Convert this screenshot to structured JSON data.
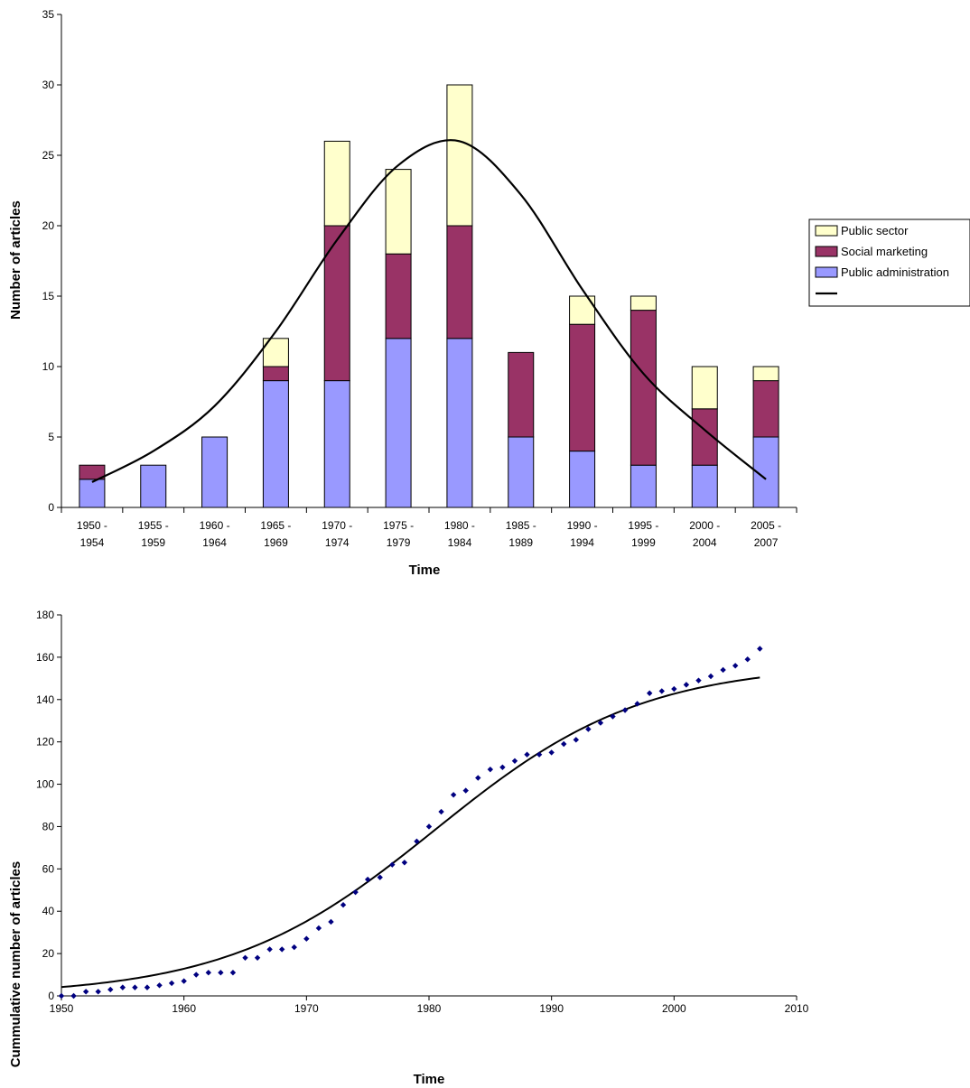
{
  "chart_data": [
    {
      "type": "bar",
      "stacked": true,
      "title": "",
      "xlabel": "Time",
      "ylabel": "Number of articles",
      "ylim": [
        0,
        35
      ],
      "yticks": [
        0,
        5,
        10,
        15,
        20,
        25,
        30,
        35
      ],
      "categories": [
        [
          "1950 -",
          "1954"
        ],
        [
          "1955 -",
          "1959"
        ],
        [
          "1960 -",
          "1964"
        ],
        [
          "1965 -",
          "1969"
        ],
        [
          "1970 -",
          "1974"
        ],
        [
          "1975 -",
          "1979"
        ],
        [
          "1980 -",
          "1984"
        ],
        [
          "1985 -",
          "1989"
        ],
        [
          "1990 -",
          "1994"
        ],
        [
          "1995 -",
          "1999"
        ],
        [
          "2000 -",
          "2004"
        ],
        [
          "2005 -",
          "2007"
        ]
      ],
      "series": [
        {
          "name": "Public administration",
          "color": "#9999ff",
          "values": [
            2,
            3,
            5,
            9,
            9,
            12,
            12,
            5,
            4,
            3,
            3,
            5
          ]
        },
        {
          "name": "Social marketing",
          "color": "#993366",
          "values": [
            1,
            0,
            0,
            1,
            11,
            6,
            8,
            6,
            9,
            11,
            4,
            4
          ]
        },
        {
          "name": "Public sector",
          "color": "#ffffcc",
          "values": [
            0,
            0,
            0,
            2,
            6,
            6,
            10,
            0,
            2,
            1,
            3,
            1
          ]
        }
      ],
      "trend_line": {
        "name": "",
        "color": "#000000",
        "values": [
          1.8,
          4.0,
          7.2,
          12.5,
          19.0,
          24.3,
          26.0,
          22.2,
          15.5,
          9.5,
          5.5,
          2.0
        ]
      },
      "legend": {
        "position": "right",
        "entries": [
          {
            "label": "Public sector",
            "color": "#ffffcc",
            "kind": "box"
          },
          {
            "label": "Social marketing",
            "color": "#993366",
            "kind": "box"
          },
          {
            "label": "Public administration",
            "color": "#9999ff",
            "kind": "box"
          },
          {
            "label": "",
            "color": "#000000",
            "kind": "line"
          }
        ]
      }
    },
    {
      "type": "scatter",
      "title": "",
      "xlabel": "Time",
      "ylabel": "Cummulative number of articles",
      "xlim": [
        1950,
        2010
      ],
      "ylim": [
        0,
        180
      ],
      "xticks": [
        1950,
        1960,
        1970,
        1980,
        1990,
        2000,
        2010
      ],
      "yticks": [
        0,
        20,
        40,
        60,
        80,
        100,
        120,
        140,
        160,
        180
      ],
      "points_color": "#000080",
      "points": [
        [
          1950,
          0
        ],
        [
          1951,
          0
        ],
        [
          1952,
          2
        ],
        [
          1953,
          2
        ],
        [
          1954,
          3
        ],
        [
          1955,
          4
        ],
        [
          1956,
          4
        ],
        [
          1957,
          4
        ],
        [
          1958,
          5
        ],
        [
          1959,
          6
        ],
        [
          1960,
          7
        ],
        [
          1961,
          10
        ],
        [
          1962,
          11
        ],
        [
          1963,
          11
        ],
        [
          1964,
          11
        ],
        [
          1965,
          18
        ],
        [
          1966,
          18
        ],
        [
          1967,
          22
        ],
        [
          1968,
          22
        ],
        [
          1969,
          23
        ],
        [
          1970,
          27
        ],
        [
          1971,
          32
        ],
        [
          1972,
          35
        ],
        [
          1973,
          43
        ],
        [
          1974,
          49
        ],
        [
          1975,
          55
        ],
        [
          1976,
          56
        ],
        [
          1977,
          62
        ],
        [
          1978,
          63
        ],
        [
          1979,
          73
        ],
        [
          1980,
          80
        ],
        [
          1981,
          87
        ],
        [
          1982,
          95
        ],
        [
          1983,
          97
        ],
        [
          1984,
          103
        ],
        [
          1985,
          107
        ],
        [
          1986,
          108
        ],
        [
          1987,
          111
        ],
        [
          1988,
          114
        ],
        [
          1989,
          114
        ],
        [
          1990,
          115
        ],
        [
          1991,
          119
        ],
        [
          1992,
          121
        ],
        [
          1993,
          126
        ],
        [
          1994,
          129
        ],
        [
          1995,
          132
        ],
        [
          1996,
          135
        ],
        [
          1997,
          138
        ],
        [
          1998,
          143
        ],
        [
          1999,
          144
        ],
        [
          2000,
          145
        ],
        [
          2001,
          147
        ],
        [
          2002,
          149
        ],
        [
          2003,
          151
        ],
        [
          2004,
          154
        ],
        [
          2005,
          156
        ],
        [
          2006,
          159
        ],
        [
          2007,
          164
        ]
      ],
      "fit_curve": {
        "color": "#000000",
        "type": "logistic",
        "K": 157,
        "midpoint": 1980.5,
        "rate": 0.118
      }
    }
  ]
}
